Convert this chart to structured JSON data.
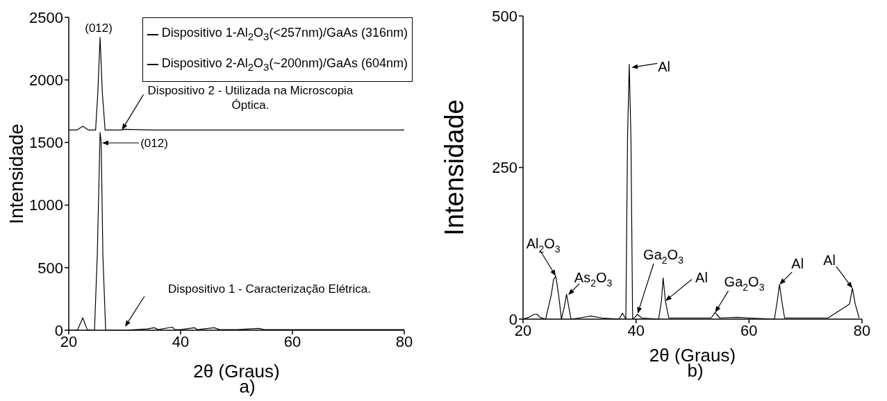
{
  "chart_data": [
    {
      "type": "line",
      "title": "a)",
      "xlabel": "2θ (Graus)",
      "ylabel": "Intensidade",
      "xlim": [
        20,
        80
      ],
      "xticks": [
        20,
        40,
        60,
        80
      ],
      "ylim": [
        0,
        2500
      ],
      "yticks": [
        0,
        500,
        1000,
        1500,
        2000,
        2500
      ],
      "legend": "top right",
      "series": [
        {
          "name": "Dispositivo 1-Al$_{2}$O$_{3}$(<257nm)/GaAs (316nm)",
          "color": "#000000",
          "x": [
            20,
            21,
            21.6,
            22.5,
            23.3,
            24,
            24.6,
            25.1,
            25.6,
            25.8,
            26.1,
            26.6,
            27,
            28,
            30,
            32,
            34,
            35.3,
            36,
            38.5,
            39,
            40,
            42.5,
            43,
            46,
            47,
            50,
            54,
            55,
            60,
            65,
            70,
            75,
            80
          ],
          "values": [
            0,
            0,
            5,
            100,
            5,
            0,
            0,
            600,
            1580,
            1500,
            600,
            0,
            0,
            0,
            0,
            5,
            10,
            20,
            5,
            25,
            5,
            5,
            20,
            5,
            20,
            5,
            5,
            15,
            5,
            5,
            5,
            5,
            5,
            5
          ]
        },
        {
          "name": "Dispositivo 2-Al$_{2}$O$_{3}$(~200nm)/GaAs (604nm)",
          "color": "#000000",
          "x": [
            20,
            21.5,
            22.5,
            23.5,
            24.8,
            25.2,
            25.6,
            26,
            26.5,
            28,
            29.5,
            30,
            35,
            40,
            45,
            50,
            55,
            60,
            65,
            70,
            75,
            80
          ],
          "values": [
            1600,
            1600,
            1630,
            1600,
            1600,
            1900,
            2340,
            1900,
            1600,
            1600,
            1600,
            1605,
            1600,
            1600,
            1600,
            1600,
            1600,
            1600,
            1600,
            1600,
            1600,
            1600
          ]
        }
      ],
      "annotations": [
        {
          "text": "(012)",
          "x": 25.6,
          "y": 2340
        },
        "(012)",
        {
          "text": "Dispositivo 2 - Utilizada na Microscopia Óptica.",
          "x": 29.5,
          "y": 1600
        },
        "Dispositivo 1 - Caracterização Elétrica."
      ]
    },
    {
      "type": "line",
      "title": "b)",
      "xlabel": "2θ (Graus)",
      "ylabel": "Intensidade",
      "xlim": [
        20,
        80
      ],
      "xticks": [
        20,
        40,
        60,
        80
      ],
      "ylim": [
        0,
        500
      ],
      "yticks": [
        0,
        250,
        500
      ],
      "series": [
        {
          "color": "#000000",
          "x": [
            20,
            21,
            22,
            22.5,
            23,
            24,
            25,
            25.4,
            25.8,
            26.3,
            26.8,
            27.3,
            27.7,
            28.1,
            28.5,
            30,
            32,
            34,
            37,
            37.6,
            38.2,
            38.5,
            38.8,
            39.1,
            39.4,
            40,
            40.2,
            41,
            44,
            44.5,
            44.8,
            45.2,
            45.8,
            50,
            53.3,
            54,
            54.8,
            58,
            60,
            64.5,
            65,
            65.4,
            65.8,
            66.3,
            70,
            74,
            77.8,
            78.3,
            78.8,
            79.5
          ],
          "values": [
            0,
            3,
            8,
            8,
            3,
            0,
            40,
            65,
            71,
            40,
            0,
            20,
            41,
            20,
            0,
            2,
            5,
            2,
            0,
            10,
            0,
            300,
            420,
            300,
            0,
            5,
            8,
            2,
            0,
            30,
            68,
            30,
            2,
            2,
            2,
            11,
            2,
            3,
            2,
            0,
            30,
            57,
            30,
            2,
            2,
            2,
            25,
            51,
            25,
            2
          ]
        }
      ],
      "annotations": [
        {
          "text": "Al$_{2}$O$_{3}$",
          "x": 25.8,
          "y": 71
        },
        {
          "text": "As$_{2}$O$_{3}$",
          "x": 28,
          "y": 40
        },
        "Ga$_{2}$O$_{3}$",
        {
          "text": "Al",
          "x": 39.2,
          "y": 415
        },
        {
          "text": "Al",
          "x": 45.2,
          "y": 30
        },
        {
          "text": "Ga$_{2}$O$_{3}$",
          "x": 54,
          "y": 11
        },
        {
          "text": "Al",
          "x": 65.4,
          "y": 57
        },
        {
          "text": "Al",
          "x": 78.3,
          "y": 51
        }
      ]
    }
  ]
}
